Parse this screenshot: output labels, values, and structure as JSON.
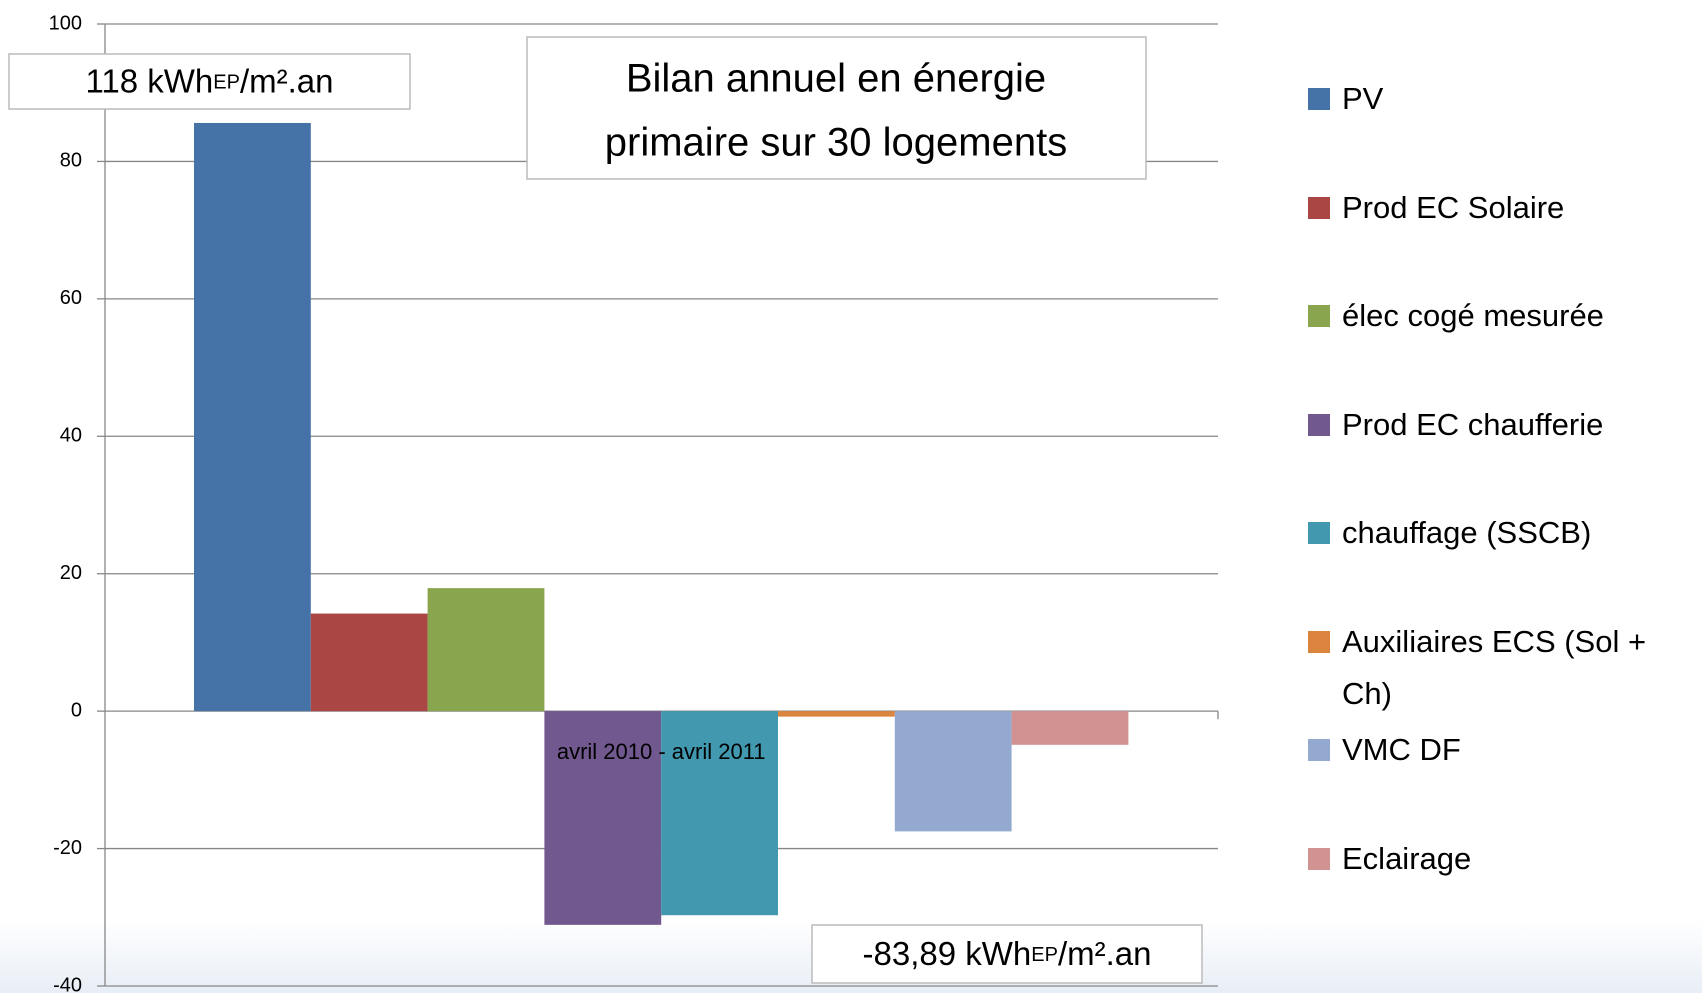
{
  "chart_data": {
    "type": "bar",
    "title": [
      "Bilan annuel en énergie",
      "primaire sur 30 logements"
    ],
    "categories": [
      "avril 2010 - avril 2011"
    ],
    "series": [
      {
        "name": "PV",
        "color": "#4572a7",
        "values": [
          85.6
        ]
      },
      {
        "name": "Prod EC Solaire",
        "color": "#aa4643",
        "values": [
          14.2
        ]
      },
      {
        "name": "élec cogé mesurée",
        "color": "#89a54e",
        "values": [
          17.9
        ]
      },
      {
        "name": "Prod EC chaufferie",
        "color": "#71588f",
        "values": [
          -31.1
        ]
      },
      {
        "name": "chauffage (SSCB)",
        "color": "#4198af",
        "values": [
          -29.7
        ]
      },
      {
        "name": "Auxiliaires ECS (Sol + Ch)",
        "color": "#db843d",
        "values": [
          -0.8
        ]
      },
      {
        "name": "VMC DF",
        "color": "#93a9cf",
        "values": [
          -17.5
        ]
      },
      {
        "name": "Eclairage",
        "color": "#d19392",
        "values": [
          -4.9
        ]
      }
    ],
    "ylim": [
      -40,
      100
    ],
    "yticks": [
      -40,
      -20,
      0,
      20,
      40,
      60,
      80,
      100
    ],
    "grid": true,
    "annotations": [
      [
        "118 kWh",
        "EP",
        "/m².an"
      ],
      [
        "-83,89 kWh",
        "EP",
        "/m².an"
      ]
    ]
  }
}
